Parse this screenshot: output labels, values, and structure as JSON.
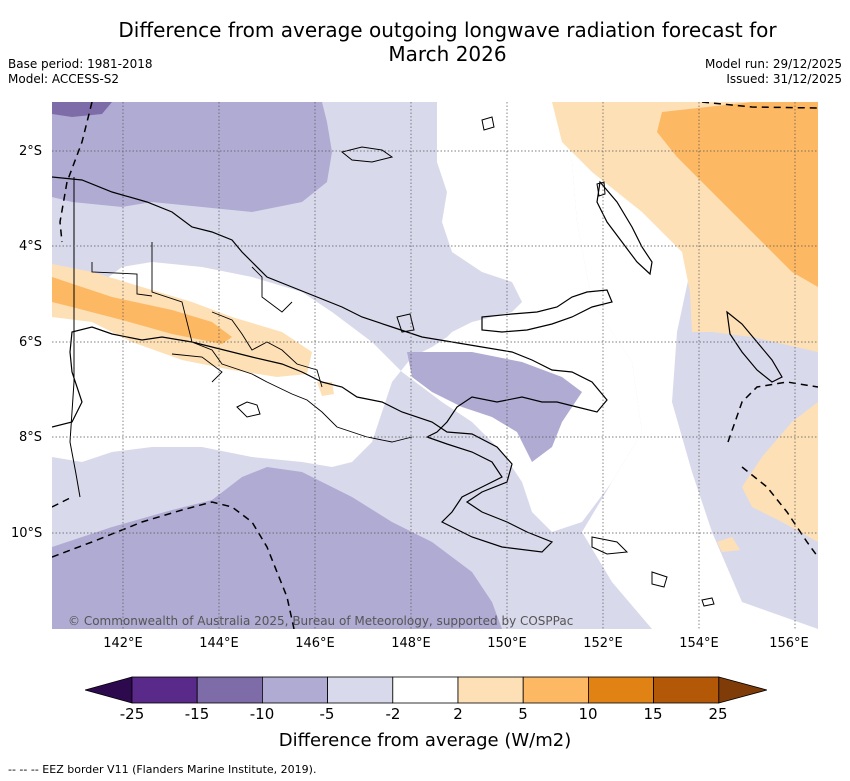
{
  "title_line1": "Difference from average outgoing longwave radiation forecast for",
  "title_line2": "March 2026",
  "base_period": "Base period: 1981-2018",
  "model": "Model: ACCESS-S2",
  "model_run": "Model run: 29/12/2025",
  "issued": "Issued: 31/12/2025",
  "copyright": "© Commonwealth of Australia 2025, Bureau of Meteorology, supported by COSPPac",
  "latitude_labels": [
    "2°S",
    "4°S",
    "6°S",
    "8°S",
    "10°S"
  ],
  "longitude_labels": [
    "142°E",
    "144°E",
    "146°E",
    "148°E",
    "150°E",
    "152°E",
    "154°E",
    "156°E"
  ],
  "colorbar": {
    "label": "Difference from average (W/m2)",
    "ticks": [
      "-25",
      "-15",
      "-10",
      "-5",
      "-2",
      "2",
      "5",
      "10",
      "15",
      "25"
    ],
    "colors": [
      "#2d0a4e",
      "#5a2a8a",
      "#7e6ca8",
      "#b0abd3",
      "#d9d9ec",
      "#ffffff",
      "#fee0b6",
      "#fdb863",
      "#e08214",
      "#b35806",
      "#7f3b08"
    ]
  },
  "footnote": "--  --  -- EEZ border V11 (Flanders Marine Institute, 2019)."
}
